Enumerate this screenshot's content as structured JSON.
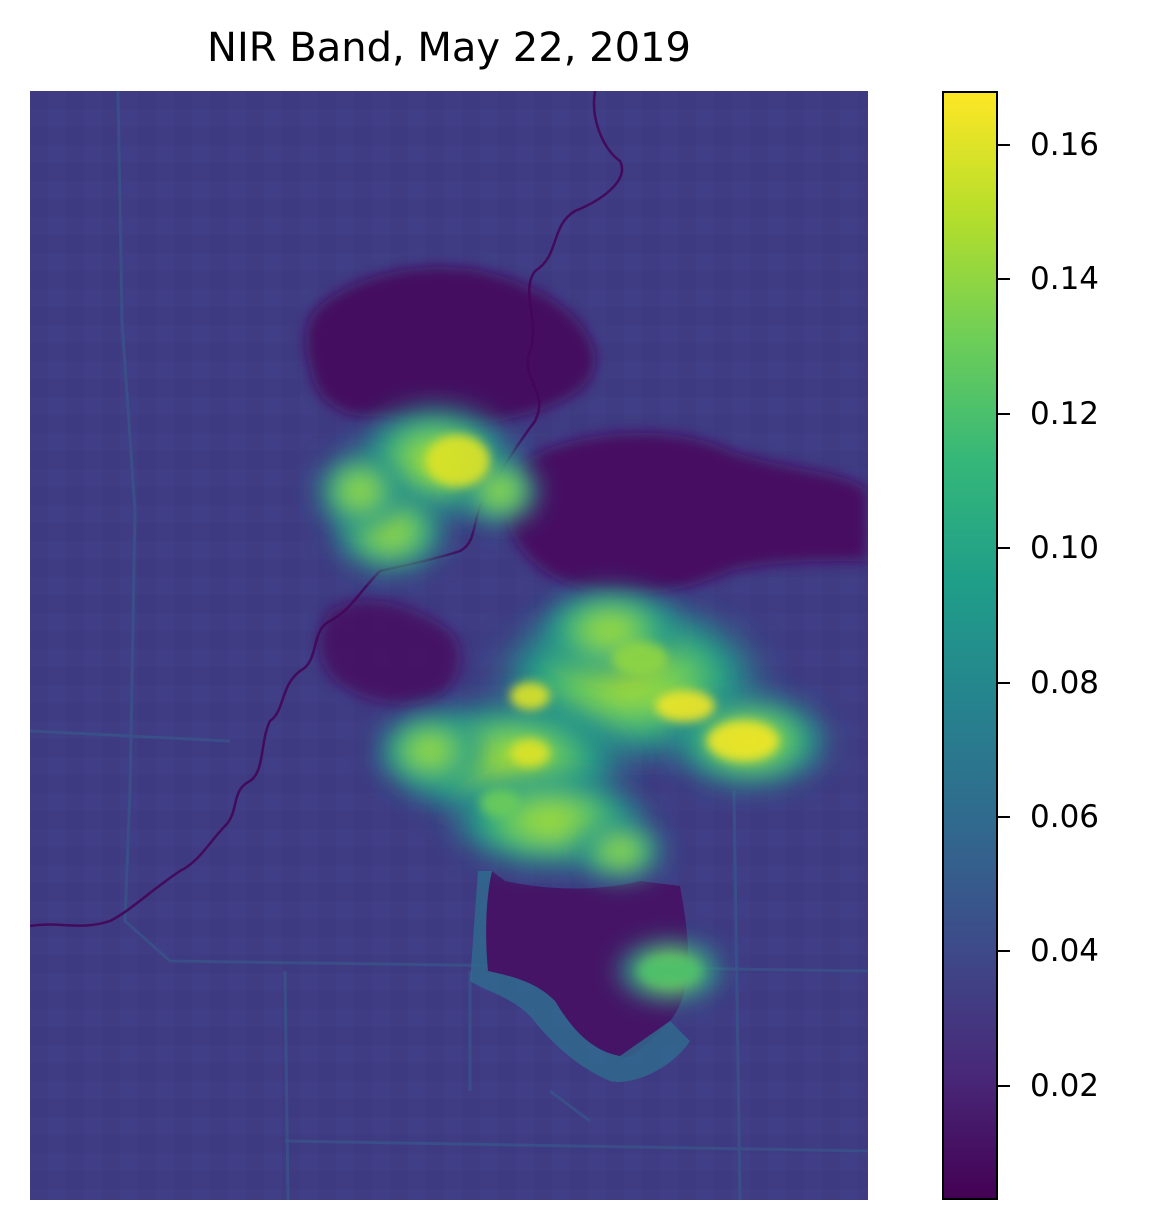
{
  "chart_data": {
    "type": "heatmap",
    "title": "NIR Band, May 22, 2019",
    "xlabel": "",
    "ylabel": "",
    "colormap": "viridis",
    "colorbar": {
      "min": 0.003,
      "max": 0.168,
      "ticks": [
        0.02,
        0.04,
        0.06,
        0.08,
        0.1,
        0.12,
        0.14,
        0.16
      ],
      "tick_labels": [
        "0.02",
        "0.04",
        "0.06",
        "0.08",
        "0.10",
        "0.12",
        "0.14",
        "0.16"
      ],
      "placement": "right"
    },
    "axes_visible": false,
    "background_value": 0.03,
    "features": [
      {
        "name": "dark-region-north",
        "value": 0.008
      },
      {
        "name": "dark-region-center",
        "value": 0.01
      },
      {
        "name": "lake-south",
        "value": 0.012
      },
      {
        "name": "cloud-cluster-northwest",
        "peak_value": 0.16
      },
      {
        "name": "cloud-cluster-east",
        "peak_value": 0.165
      },
      {
        "name": "cloud-cluster-south",
        "peak_value": 0.12
      },
      {
        "name": "river",
        "value": 0.005
      }
    ]
  },
  "colors": {
    "viridis": [
      "#440154",
      "#482878",
      "#3e4989",
      "#31688e",
      "#26828e",
      "#1f9e89",
      "#35b779",
      "#6ece58",
      "#b5de2b",
      "#fde725"
    ],
    "frame": "#000000"
  }
}
